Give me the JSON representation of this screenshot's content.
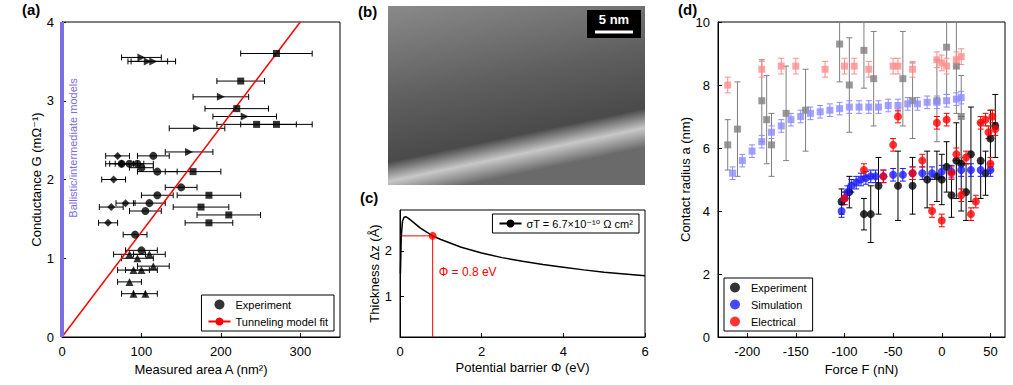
{
  "chart_data": [
    {
      "panel": "(a)",
      "type": "scatter",
      "x_label": "Measured area A (nm²)",
      "y_label": "Conductance G (mΩ⁻¹)",
      "xlim": [
        0,
        350
      ],
      "xticks": [
        0,
        100,
        200,
        300
      ],
      "ylim": [
        0,
        4
      ],
      "yticks": [
        0,
        1,
        2,
        3,
        4
      ],
      "legend": "lower right",
      "annotations": [
        {
          "text": "Ballistic/intermediate models",
          "x": 0,
          "color": "#7b6ee6"
        }
      ],
      "series": [
        {
          "name": "Experiment",
          "marker": "circle",
          "color": "#000000",
          "x": [
            75,
            85,
            95,
            100,
            115,
            120,
            150,
            120,
            110,
            105,
            92,
            100
          ],
          "values": [
            2.2,
            2.2,
            2.2,
            2.15,
            2.3,
            2.1,
            1.9,
            1.8,
            1.7,
            1.6,
            1.3,
            1.1
          ],
          "x_err": [
            20,
            18,
            20,
            15,
            20,
            25,
            20,
            20,
            20,
            20,
            15,
            20
          ]
        },
        {
          "marker": "square",
          "color": "#000000",
          "x": [
            270,
            225,
            220,
            245,
            270,
            165,
            185,
            175,
            185,
            210
          ],
          "values": [
            3.6,
            3.25,
            2.9,
            2.7,
            2.7,
            2.1,
            1.8,
            1.65,
            1.45,
            1.55
          ],
          "x_err": [
            45,
            30,
            40,
            50,
            45,
            35,
            40,
            35,
            30,
            40
          ]
        },
        {
          "marker": "triangle-right",
          "color": "#000000",
          "x": [
            100,
            108,
            115,
            200,
            170,
            230,
            160
          ],
          "values": [
            3.55,
            3.5,
            3.5,
            3.05,
            2.65,
            2.8,
            2.35
          ],
          "x_err": [
            25,
            25,
            28,
            35,
            35,
            40,
            30
          ]
        },
        {
          "marker": "triangle",
          "color": "#000000",
          "x": [
            85,
            95,
            110,
            90,
            100,
            115,
            90,
            105,
            85
          ],
          "values": [
            1.05,
            1.0,
            1.05,
            0.85,
            0.85,
            0.9,
            0.55,
            0.55,
            0.7
          ],
          "x_err": [
            20,
            20,
            20,
            20,
            20,
            20,
            15,
            15,
            15
          ]
        },
        {
          "marker": "diamond",
          "color": "#000000",
          "x": [
            70,
            75,
            65,
            62,
            80,
            58
          ],
          "values": [
            2.3,
            2.2,
            2.0,
            1.65,
            1.7,
            1.45
          ],
          "x_err": [
            15,
            15,
            15,
            15,
            12,
            12
          ]
        },
        {
          "name": "Tunneling model fit",
          "type": "line",
          "color": "#ff0000",
          "x": [
            0,
            300
          ],
          "values": [
            0,
            4
          ]
        }
      ]
    },
    {
      "panel": "(b)",
      "type": "image",
      "scale_bar": "5 nm"
    },
    {
      "panel": "(c)",
      "type": "line",
      "x_label": "Potential barrier Φ (eV)",
      "y_label": "Thickness Δz (Å)",
      "xlim": [
        0,
        6
      ],
      "xticks": [
        0,
        2,
        4,
        6
      ],
      "ylim": [
        0.1,
        2.9
      ],
      "yticks": [
        1,
        2
      ],
      "legend": "upper right",
      "highlight": {
        "x": 0.8,
        "y": 2.33,
        "label": "Φ = 0.8 eV",
        "color": "#ff0000"
      },
      "series": [
        {
          "name": "σT = 6.7×10⁻¹⁰ Ω cm²",
          "color": "#000000",
          "x": [
            0.01,
            0.03,
            0.06,
            0.1,
            0.15,
            0.2,
            0.3,
            0.5,
            0.8,
            1,
            1.5,
            2,
            2.5,
            3,
            3.5,
            4,
            4.5,
            5,
            5.5,
            6
          ],
          "values": [
            1.5,
            2.3,
            2.65,
            2.74,
            2.75,
            2.72,
            2.65,
            2.5,
            2.33,
            2.25,
            2.08,
            1.95,
            1.85,
            1.77,
            1.7,
            1.64,
            1.58,
            1.53,
            1.49,
            1.45
          ]
        }
      ]
    },
    {
      "panel": "(d)",
      "type": "scatter",
      "x_label": "Force F (nN)",
      "y_label": "Contact radius a (nm)",
      "xlim": [
        -230,
        65
      ],
      "xticks": [
        -200,
        -150,
        -100,
        -50,
        0,
        50
      ],
      "ylim": [
        0,
        10
      ],
      "yticks": [
        0,
        2,
        4,
        6,
        8,
        10
      ],
      "legend": "lower left",
      "series": [
        {
          "name": "Experiment",
          "marker": "circle",
          "color": "#000000",
          "x": [
            -103,
            -95,
            -80,
            -73,
            -65,
            -45,
            -30,
            -15,
            -5,
            0,
            5,
            10,
            15,
            20,
            25,
            30,
            40,
            45,
            50,
            55
          ],
          "values": [
            4.3,
            4.6,
            3.9,
            3.9,
            4.8,
            4.8,
            4.8,
            5.0,
            5.1,
            5.0,
            5.4,
            4.5,
            5.6,
            5.5,
            4.6,
            5.8,
            5.6,
            5.2,
            6.3,
            6.7
          ],
          "y_err": [
            0.4,
            0.5,
            0.5,
            0.9,
            0.9,
            1.1,
            0.9,
            0.9,
            0.8,
            0.8,
            0.8,
            0.7,
            1.2,
            1.5,
            0.9,
            1.5,
            1.2,
            0.7,
            0.9,
            1.0
          ]
        },
        {
          "marker": "square",
          "color": "#7f7f7f",
          "x": [
            -220,
            -210,
            -185,
            -180,
            -175,
            -160,
            -140,
            -105,
            -95,
            -80,
            -70,
            -40,
            -30,
            -5,
            5,
            15,
            20
          ],
          "values": [
            6.1,
            6.6,
            7.5,
            6.9,
            6.1,
            7.1,
            7.2,
            9.3,
            8.0,
            9.1,
            8.2,
            8.2,
            7.5,
            7.5,
            9.2,
            8.6,
            7.0
          ],
          "y_err": [
            0.8,
            1.5,
            1.3,
            1.4,
            1.0,
            1.5,
            1.3,
            1.2,
            1.5,
            1.2,
            1.5,
            1.5,
            1.2,
            1.3,
            1.5,
            1.5,
            1.3
          ]
        },
        {
          "name": "Simulation",
          "marker": "circle",
          "color": "#1a1aff",
          "x": [
            -103,
            -100,
            -97,
            -93,
            -88,
            -83,
            -78,
            -73,
            -68,
            -60,
            -50,
            -40,
            -30,
            -20,
            -10,
            0,
            10,
            20,
            30,
            40,
            50
          ],
          "values": [
            4.0,
            4.4,
            4.6,
            4.8,
            4.9,
            5.0,
            5.05,
            5.1,
            5.1,
            5.1,
            5.15,
            5.15,
            5.2,
            5.2,
            5.2,
            5.25,
            5.25,
            5.3,
            5.3,
            5.3,
            5.3
          ],
          "y_err": [
            0.2,
            0.2,
            0.2,
            0.2,
            0.2,
            0.2,
            0.2,
            0.2,
            0.2,
            0.2,
            0.2,
            0.2,
            0.2,
            0.2,
            0.2,
            0.2,
            0.2,
            0.2,
            0.2,
            0.2,
            0.2
          ]
        },
        {
          "marker": "square",
          "color": "#8c8cff",
          "x": [
            -215,
            -205,
            -195,
            -185,
            -175,
            -165,
            -155,
            -145,
            -135,
            -125,
            -115,
            -105,
            -95,
            -85,
            -75,
            -65,
            -55,
            -45,
            -35,
            -25,
            -15,
            -5,
            5,
            15,
            20
          ],
          "values": [
            5.2,
            5.6,
            5.9,
            6.2,
            6.5,
            6.7,
            6.9,
            7.0,
            7.1,
            7.15,
            7.2,
            7.25,
            7.3,
            7.3,
            7.3,
            7.3,
            7.35,
            7.35,
            7.4,
            7.4,
            7.45,
            7.45,
            7.5,
            7.55,
            7.6
          ],
          "y_err": [
            0.2,
            0.2,
            0.2,
            0.2,
            0.2,
            0.2,
            0.2,
            0.2,
            0.2,
            0.2,
            0.2,
            0.2,
            0.2,
            0.2,
            0.2,
            0.2,
            0.2,
            0.2,
            0.2,
            0.2,
            0.2,
            0.2,
            0.2,
            0.2,
            0.2
          ]
        },
        {
          "name": "Electrical",
          "marker": "circle",
          "color": "#ff0000",
          "x": [
            -100,
            -80,
            -60,
            -50,
            -45,
            -30,
            -20,
            -10,
            -5,
            0,
            5,
            10,
            15,
            20,
            25,
            30,
            35,
            40,
            45,
            48,
            50,
            52,
            55
          ],
          "values": [
            4.4,
            5.3,
            5.1,
            6.1,
            7.0,
            5.2,
            5.6,
            4.0,
            6.8,
            3.7,
            6.9,
            5.2,
            5.8,
            4.5,
            5.7,
            3.9,
            4.3,
            6.8,
            6.9,
            6.5,
            5.5,
            7.0,
            6.6
          ],
          "y_err": [
            0.2,
            0.2,
            0.2,
            0.2,
            0.2,
            0.2,
            0.2,
            0.2,
            0.2,
            0.2,
            0.2,
            0.2,
            0.2,
            0.2,
            0.2,
            0.2,
            0.2,
            0.2,
            0.2,
            0.2,
            0.2,
            0.2,
            0.2
          ]
        },
        {
          "marker": "square",
          "color": "#ff8c8c",
          "x": [
            -220,
            -185,
            -165,
            -150,
            -120,
            -100,
            -90,
            -75,
            -50,
            -45,
            -30,
            -5,
            0,
            5,
            15,
            20
          ],
          "values": [
            8.0,
            8.5,
            8.6,
            8.6,
            8.5,
            8.6,
            8.6,
            8.5,
            8.6,
            8.6,
            8.5,
            8.8,
            8.7,
            8.6,
            8.8,
            8.9
          ],
          "y_err": [
            0.25,
            0.25,
            0.25,
            0.25,
            0.25,
            0.25,
            0.25,
            0.25,
            0.25,
            0.25,
            0.25,
            0.25,
            0.25,
            0.25,
            0.25,
            0.25
          ]
        }
      ]
    }
  ]
}
